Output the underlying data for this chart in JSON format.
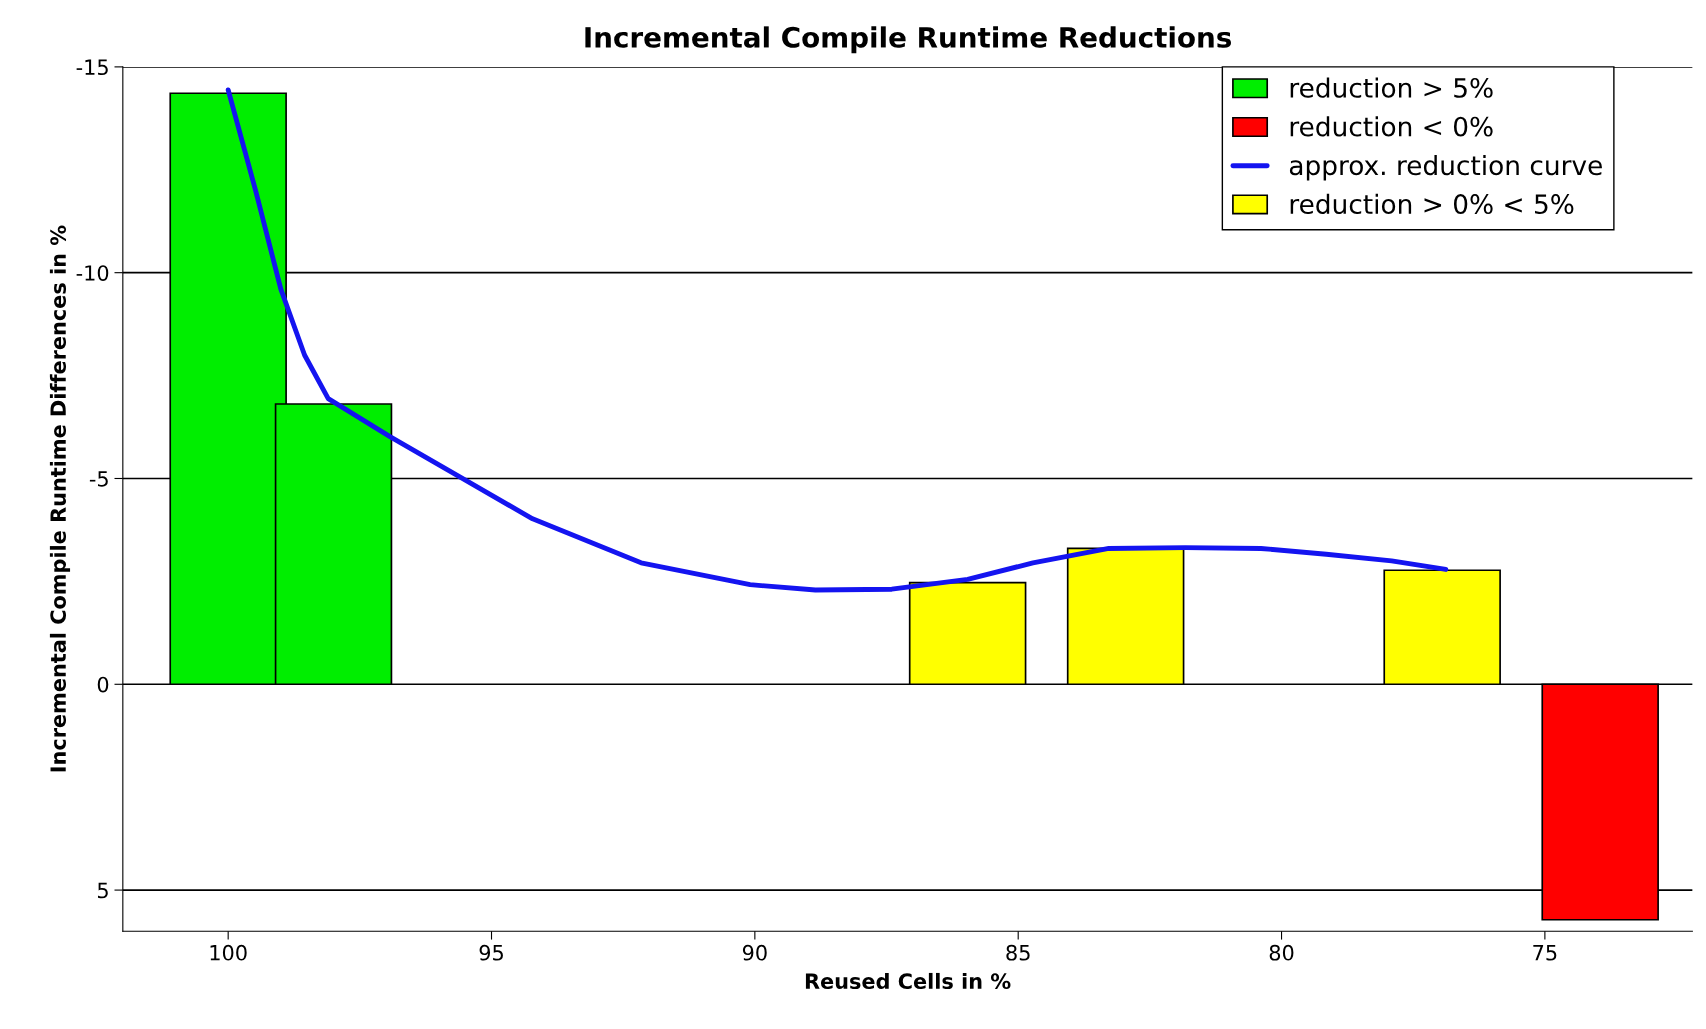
{
  "chart_data": {
    "type": "bar",
    "title": "Incremental Compile Runtime Reductions",
    "xlabel": "Reused Cells in %",
    "ylabel": "Incremental Compile Runtime Differences in %",
    "xlim": [
      102,
      72.2
    ],
    "xticks": [
      100,
      95,
      90,
      85,
      80,
      75
    ],
    "ylim": [
      6,
      -15
    ],
    "yticks": [
      -15,
      -10,
      -5,
      0,
      5
    ],
    "grid": "y",
    "legend": "top right",
    "series": [
      {
        "name": "reduction > 5%",
        "color": "#00ee00",
        "x": [
          100,
          98
        ],
        "values": [
          -14.36,
          -6.81
        ]
      },
      {
        "name": "reduction < 0%",
        "color": "#ff0000",
        "x": [
          73.95
        ],
        "values": [
          5.72
        ]
      },
      {
        "name": "approx. reduction curve",
        "type": "line",
        "color": "#1414f0",
        "x": [
          100,
          99.48,
          99.0,
          98.55,
          98.1,
          96.92,
          95.66,
          94.22,
          92.16,
          90.09,
          88.85,
          87.4,
          85.96,
          84.72,
          83.28,
          81.83,
          80.39,
          79.15,
          77.91,
          76.88
        ],
        "values": [
          -14.44,
          -12.0,
          -9.6,
          -8.0,
          -6.94,
          -6.01,
          -5.08,
          -4.02,
          -2.95,
          -2.42,
          -2.29,
          -2.31,
          -2.55,
          -2.95,
          -3.3,
          -3.32,
          -3.3,
          -3.16,
          -3.0,
          -2.79
        ]
      },
      {
        "name": "reduction > 0% < 5%",
        "color": "#ffff00",
        "x": [
          85.96,
          82.96,
          76.95
        ],
        "values": [
          -2.47,
          -3.3,
          -2.77
        ]
      }
    ]
  }
}
